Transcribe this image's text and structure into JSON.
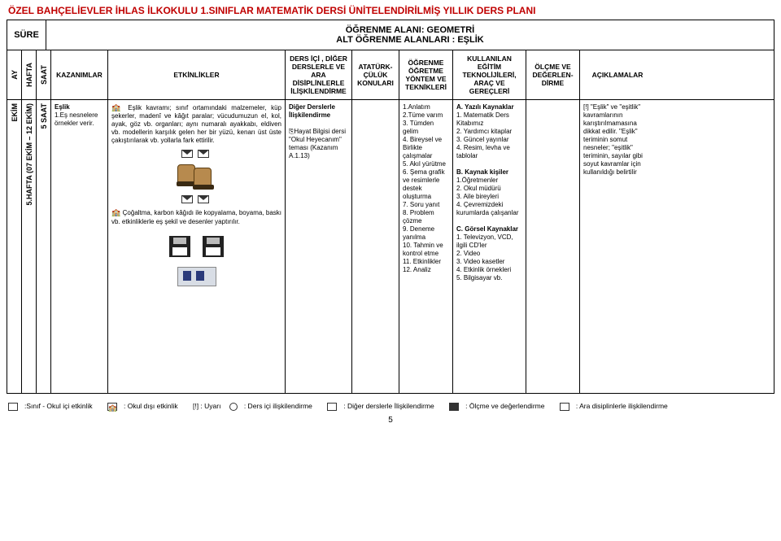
{
  "title": "ÖZEL BAHÇELİEVLER İHLAS İLKOKULU 1.SINIFLAR MATEMATİK DERSİ ÜNİTELENDİRİLMİŞ YILLIK DERS PLANI",
  "sure_label": "SÜRE",
  "alan_line1": "ÖĞRENME ALANI: GEOMETRİ",
  "alan_line2": "ALT ÖĞRENME ALANLARI   : EŞLİK",
  "headers": {
    "ay": "AY",
    "hafta": "HAFTA",
    "saat": "SAAT",
    "kazanimlar": "KAZANIMLAR",
    "etkinlikler": "ETKİNLİKLER",
    "ders_ici": "DERS İÇİ ,  DİĞER DERSLERLE VE ARA DİSİPLİNLERLE İLİŞKİLENDİRME",
    "ataturk": "ATATÜRK-ÇÜLÜK KONULARI",
    "ogrenme": "ÖĞRENME ÖĞRETME YÖNTEM VE TEKNİKLERİ",
    "kullanilan": "KULLANILAN EĞİTİM TEKNOLİJİLERİ, ARAÇ VE GEREÇLERİ",
    "olcme": "ÖLÇME VE DEĞERLEN-DİRME",
    "aciklamalar": "AÇIKLAMALAR"
  },
  "row": {
    "ay": "EKİM",
    "hafta": "5.HAFTA (07 EKİM – 12 EKİM)",
    "saat": "5 SAAT",
    "kazanim_title": "Eşlik",
    "kazanim_body": "1.Eş nesnelere örnekler verir.",
    "etkin_p1": " Eşlik kavramı; sınıf ortamındaki malzemeler, küp şekerler, madenî ve kâğıt paralar; vücudumuzun el, kol, ayak, göz vb. organları; aynı numaralı ayakkabı, eldiven vb. modellerin karşılık gelen her bir yüzü, kenarı üst üste çakıştırılarak vb. yollarla fark ettirilir.",
    "etkin_p2": " Çoğaltma,  karbon kâğıdı ile kopyalama, boyama, baskı vb. etkinliklerle eş şekil ve desenler yaptırılır.",
    "ders_h": "Diğer Derslerle İlişkilendirme",
    "ders_b": "Hayat Bilgisi dersi \"Okul Heyecanım\" teması (Kazanım A.1.13)",
    "ogr_list": "1.Anlatım\n2.Tüme varım\n3. Tümden gelim\n4. Bireysel ve Birlikte çalışmalar\n5. Akıl yürütme\n6. Şema grafik ve resimlerle destek oluşturma\n7. Soru yanıt\n8. Problem çözme\n9. Deneme yanılma\n10. Tahmin ve kontrol etme\n11. Etkinlikler\n12. Analiz",
    "kul_a_h": "A. Yazılı Kaynaklar",
    "kul_a": "1. Matematik Ders Kitabımız\n2. Yardımcı kitaplar\n3. Güncel yayınlar\n4. Resim, levha ve tablolar",
    "kul_b_h": "B. Kaynak kişiler",
    "kul_b": "1.Öğretmenler\n2. Okul müdürü\n3. Aile bireyleri\n4. Çevremizdeki kurumlarda çalışanlar",
    "kul_c_h": "C. Görsel Kaynaklar",
    "kul_c": "1. Televizyon, VCD, ilgili CD'ler\n2. Video\n3. Video kasetler\n4. Etkinlik örnekleri\n5. Bilgisayar vb.",
    "acik": "[!] \"Eşlik\" ve \"eşitlik\" kavramlarının karıştırılmamasına dikkat edilir. \"Eşlik\" teriminin somut nesneler; \"eşitlik\" teriminin, sayılar gibi soyut kavramlar için kullanıldığı belirtilir"
  },
  "legend": {
    "l1": ":Sınıf - Okul içi etkinlik",
    "l2": ": Okul dışı etkinlik",
    "l3": "[!] : Uyarı",
    "l4": ": Ders içi ilişkilendirme",
    "l5": ": Diğer derslerle İlişkilendirme",
    "l6": ": Ölçme ve değerlendirme",
    "l7": ": Ara disiplinlerle ilişkilendirme"
  },
  "page_number": "5"
}
